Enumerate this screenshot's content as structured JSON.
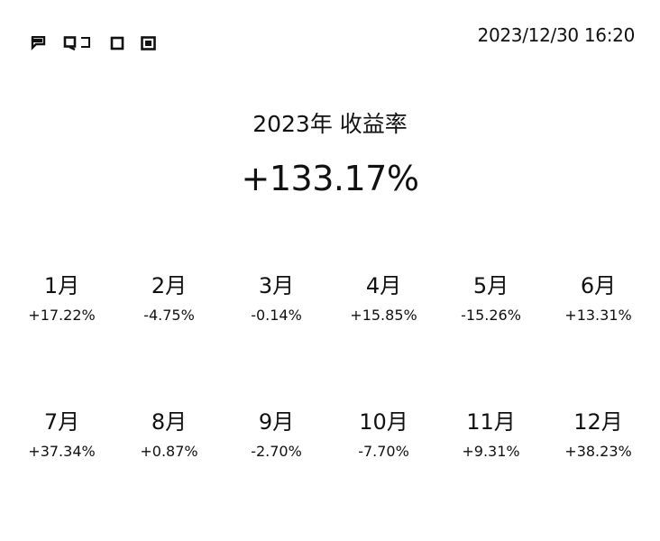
{
  "toolbar": {
    "icons": [
      "flag-icon",
      "comment-icon",
      "square-icon",
      "square-filled-icon"
    ]
  },
  "header": {
    "timestamp": "2023/12/30 16:20"
  },
  "summary": {
    "title": "2023年 收益率",
    "total": "+133.17%"
  },
  "months": [
    {
      "label": "1月",
      "value": "+17.22%"
    },
    {
      "label": "2月",
      "value": "-4.75%"
    },
    {
      "label": "3月",
      "value": "-0.14%"
    },
    {
      "label": "4月",
      "value": "+15.85%"
    },
    {
      "label": "5月",
      "value": "-15.26%"
    },
    {
      "label": "6月",
      "value": "+13.31%"
    },
    {
      "label": "7月",
      "value": "+37.34%"
    },
    {
      "label": "8月",
      "value": "+0.87%"
    },
    {
      "label": "9月",
      "value": "-2.70%"
    },
    {
      "label": "10月",
      "value": "-7.70%"
    },
    {
      "label": "11月",
      "value": "+9.31%"
    },
    {
      "label": "12月",
      "value": "+38.23%"
    }
  ]
}
